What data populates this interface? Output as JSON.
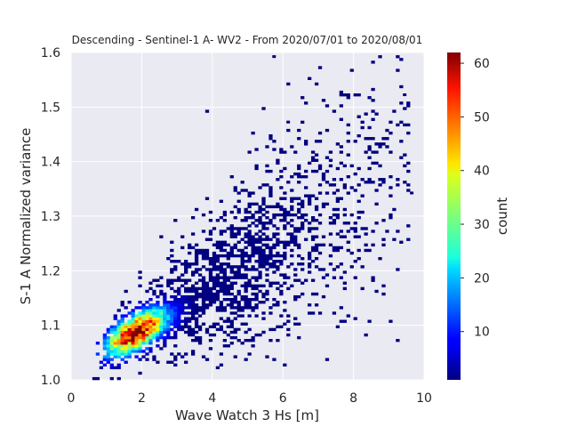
{
  "chart_data": {
    "type": "heatmap",
    "title": "Descending - Sentinel-1 A- WV2 - From 2020/07/01 to 2020/08/01",
    "xlabel": "Wave Watch 3 Hs [m]",
    "ylabel": "S-1 A Normalized variance",
    "xlim": [
      0,
      10
    ],
    "ylim": [
      1.0,
      1.6
    ],
    "xticks": [
      "0",
      "2",
      "4",
      "6",
      "8",
      "10"
    ],
    "yticks": [
      "1.0",
      "1.1",
      "1.2",
      "1.3",
      "1.4",
      "1.5",
      "1.6"
    ],
    "grid": true,
    "colormap": "jet",
    "colorbar": {
      "label": "count",
      "range": [
        1,
        62
      ],
      "ticks": [
        "10",
        "20",
        "30",
        "40",
        "50",
        "60"
      ]
    },
    "density_model": {
      "peak_count": 62,
      "core": {
        "center_x": 1.8,
        "center_y": 1.085,
        "sigma_along_x": 0.6,
        "sigma_across_y": 0.022
      },
      "trend": {
        "intercept": 1.015,
        "slope": 0.04
      },
      "tail": {
        "x_max": 9.5,
        "y_spread": 0.06,
        "relative_density": 0.05
      }
    },
    "outliers": [
      [
        5.7,
        1.59
      ],
      [
        9.4,
        1.52
      ],
      [
        9.6,
        1.34
      ],
      [
        4.7,
        1.09
      ],
      [
        6.1,
        1.47
      ]
    ]
  },
  "colors": {
    "plot_background": "#eaeaf2",
    "grid": "#ffffff",
    "text": "#262626"
  }
}
